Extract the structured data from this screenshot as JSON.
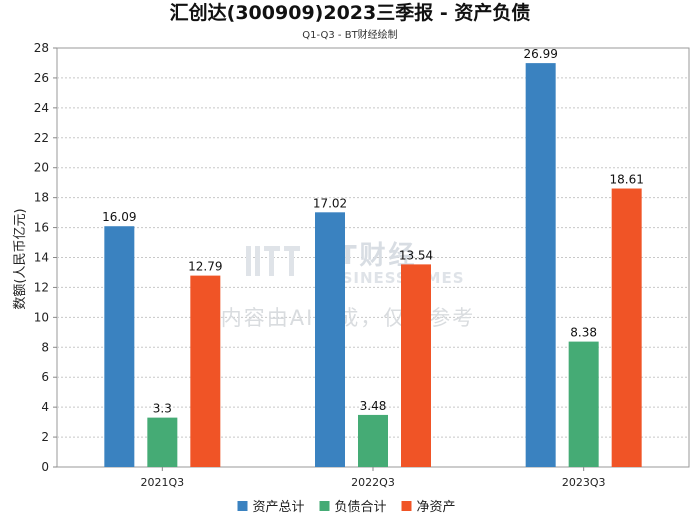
{
  "chart_data": {
    "type": "bar",
    "title": "汇创达(300909)2023三季报 - 资产负债",
    "subtitle": "Q1-Q3 - BT财经绘制",
    "ylabel": "数额(人民币亿元)",
    "xlabel": "",
    "ylim": [
      0,
      28
    ],
    "yticks": [
      0,
      2,
      4,
      6,
      8,
      10,
      12,
      14,
      16,
      18,
      20,
      22,
      24,
      26,
      28
    ],
    "grid": true,
    "legend_position": "bottom",
    "categories": [
      "2021Q3",
      "2022Q3",
      "2023Q3"
    ],
    "series": [
      {
        "name": "资产总计",
        "color": "#3a82c0",
        "values": [
          16.09,
          17.02,
          26.99
        ],
        "labels": [
          "16.09",
          "17.02",
          "26.99"
        ]
      },
      {
        "name": "负债合计",
        "color": "#45ab75",
        "values": [
          3.3,
          3.48,
          8.38
        ],
        "labels": [
          "3.3",
          "3.48",
          "8.38"
        ]
      },
      {
        "name": "净资产",
        "color": "#f05426",
        "values": [
          12.79,
          13.54,
          18.61
        ],
        "labels": [
          "12.79",
          "13.54",
          "18.61"
        ]
      }
    ]
  },
  "watermark": {
    "brand": "BT财经",
    "brand_en": "BUSINESSTIMES",
    "notice": "内容由AI生成，仅供参考"
  }
}
